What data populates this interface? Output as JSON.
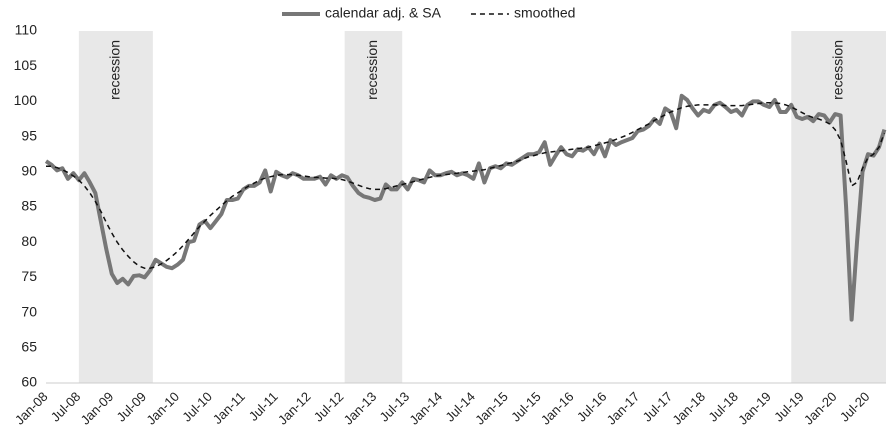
{
  "chart_data": {
    "type": "line",
    "categories": [
      "Jan-08",
      null,
      null,
      null,
      null,
      null,
      "Jul-08",
      null,
      null,
      null,
      null,
      null,
      "Jan-09",
      null,
      null,
      null,
      null,
      null,
      "Jul-09",
      null,
      null,
      null,
      null,
      null,
      "Jan-10",
      null,
      null,
      null,
      null,
      null,
      "Jul-10",
      null,
      null,
      null,
      null,
      null,
      "Jan-11",
      null,
      null,
      null,
      null,
      null,
      "Jul-11",
      null,
      null,
      null,
      null,
      null,
      "Jan-12",
      null,
      null,
      null,
      null,
      null,
      "Jul-12",
      null,
      null,
      null,
      null,
      null,
      "Jan-13",
      null,
      null,
      null,
      null,
      null,
      "Jul-13",
      null,
      null,
      null,
      null,
      null,
      "Jan-14",
      null,
      null,
      null,
      null,
      null,
      "Jul-14",
      null,
      null,
      null,
      null,
      null,
      "Jan-15",
      null,
      null,
      null,
      null,
      null,
      "Jul-15",
      null,
      null,
      null,
      null,
      null,
      "Jan-16",
      null,
      null,
      null,
      null,
      null,
      "Jul-16",
      null,
      null,
      null,
      null,
      null,
      "Jan-17",
      null,
      null,
      null,
      null,
      null,
      "Jul-17",
      null,
      null,
      null,
      null,
      null,
      "Jan-18",
      null,
      null,
      null,
      null,
      null,
      "Jul-18",
      null,
      null,
      null,
      null,
      null,
      "Jan-19",
      null,
      null,
      null,
      null,
      null,
      "Jul-19",
      null,
      null,
      null,
      null,
      null,
      "Jan-20",
      null,
      null,
      null,
      null,
      null,
      "Jul-20",
      null,
      null,
      null
    ],
    "series": [
      {
        "name": "calendar adj. & SA",
        "color": "#777777",
        "dashed": false,
        "values": [
          91.5,
          91,
          90.2,
          90.5,
          89,
          89.8,
          88.8,
          89.8,
          88.5,
          87,
          83,
          79,
          75.5,
          74.2,
          74.8,
          74,
          75.2,
          75.3,
          75,
          76,
          77.5,
          77,
          76.5,
          76.3,
          76.8,
          77.5,
          80,
          80.2,
          82.5,
          83,
          82,
          83,
          84,
          86,
          86,
          86.2,
          87.5,
          88,
          88,
          88.5,
          90.2,
          87.2,
          90,
          89.5,
          89.2,
          89.8,
          89.5,
          89,
          89,
          89,
          89.3,
          88.2,
          89.5,
          89,
          89.5,
          89.2,
          88,
          87,
          86.5,
          86.3,
          86,
          86.2,
          88.2,
          87.5,
          87.5,
          88.5,
          87.5,
          89,
          88.8,
          88.5,
          90.2,
          89.5,
          89.5,
          89.8,
          90,
          89.5,
          89.8,
          89.5,
          89,
          91.2,
          88.5,
          90.5,
          90.8,
          90.5,
          91.2,
          91,
          91.5,
          92,
          92.5,
          92.5,
          92.8,
          94.2,
          91,
          92.3,
          93.5,
          92.5,
          92.2,
          93.2,
          93,
          93.5,
          92.5,
          94,
          92.2,
          94.5,
          93.8,
          94.2,
          94.5,
          94.8,
          95.8,
          96,
          96.5,
          97.5,
          96.8,
          99,
          98.5,
          96.2,
          100.8,
          100.2,
          99,
          98,
          98.8,
          98.5,
          99.5,
          99.8,
          99.2,
          98.5,
          98.8,
          98,
          99.5,
          100,
          100,
          99.5,
          99.2,
          100.2,
          98.5,
          98.5,
          99.5,
          97.8,
          97.5,
          97.8,
          97.2,
          98.2,
          98,
          97,
          98.2,
          98,
          85,
          69,
          80,
          90,
          92.5,
          92.3,
          93.5,
          96
        ]
      },
      {
        "name": "smoothed",
        "color": "#111111",
        "dashed": true,
        "values": [
          90.8,
          90.8,
          90.6,
          90.3,
          89.9,
          89.4,
          88.8,
          88,
          87,
          85.8,
          84.4,
          82.8,
          81.3,
          80,
          78.9,
          78,
          77.2,
          76.6,
          76.3,
          76.3,
          76.5,
          76.9,
          77.4,
          78,
          78.7,
          79.5,
          80.4,
          81.3,
          82.2,
          83,
          83.8,
          84.5,
          85.2,
          85.9,
          86.5,
          87,
          87.5,
          88,
          88.4,
          88.8,
          89.1,
          89.3,
          89.5,
          89.6,
          89.6,
          89.6,
          89.5,
          89.4,
          89.3,
          89.2,
          89.2,
          89.1,
          89.1,
          89,
          88.9,
          88.7,
          88.4,
          88.1,
          87.8,
          87.6,
          87.5,
          87.5,
          87.6,
          87.8,
          88,
          88.2,
          88.4,
          88.6,
          88.8,
          89,
          89.2,
          89.4,
          89.5,
          89.6,
          89.7,
          89.8,
          89.9,
          90,
          90.1,
          90.2,
          90.3,
          90.5,
          90.7,
          90.9,
          91.1,
          91.3,
          91.5,
          91.8,
          92.1,
          92.3,
          92.5,
          92.7,
          92.8,
          92.9,
          93,
          93.1,
          93.2,
          93.3,
          93.4,
          93.5,
          93.7,
          93.9,
          94.1,
          94.3,
          94.6,
          94.9,
          95.2,
          95.6,
          96,
          96.4,
          96.8,
          97.3,
          97.7,
          98.1,
          98.5,
          98.8,
          99.1,
          99.3,
          99.4,
          99.5,
          99.5,
          99.5,
          99.5,
          99.5,
          99.4,
          99.4,
          99.4,
          99.4,
          99.5,
          99.6,
          99.7,
          99.8,
          99.8,
          99.8,
          99.7,
          99.5,
          99.2,
          98.8,
          98.4,
          98,
          97.7,
          97.5,
          97.2,
          96.8,
          96,
          94.5,
          91.5,
          88,
          88.5,
          90.5,
          92,
          92.5,
          93.5,
          95.5
        ]
      }
    ],
    "recessions": [
      {
        "label": "recession",
        "start": 6,
        "end": 19.5
      },
      {
        "label": "recession",
        "start": 54.5,
        "end": 65
      },
      {
        "label": "recession",
        "start": 136,
        "end": 154
      }
    ],
    "recession_color": "#e8e8e8",
    "ylim": [
      60,
      110
    ],
    "yticks": [
      60,
      65,
      70,
      75,
      80,
      85,
      90,
      95,
      100,
      105,
      110
    ],
    "grid": false,
    "legend": "top"
  }
}
